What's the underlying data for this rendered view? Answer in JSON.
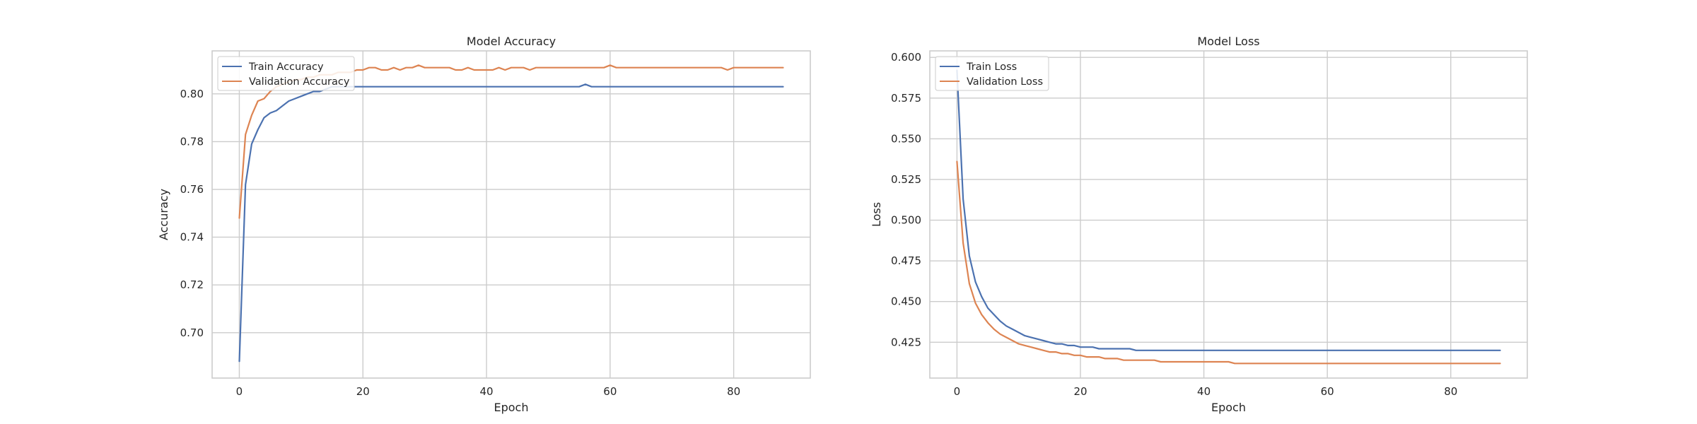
{
  "chart_data": [
    {
      "type": "line",
      "title": "Model Accuracy",
      "xlabel": "Epoch",
      "ylabel": "Accuracy",
      "xlim": [
        -4.4,
        92.4
      ],
      "ylim": [
        0.681,
        0.818
      ],
      "xticks": [
        "0",
        "20",
        "40",
        "60",
        "80"
      ],
      "yticks": [
        "0.70",
        "0.72",
        "0.74",
        "0.76",
        "0.78",
        "0.80"
      ],
      "grid": true,
      "legend_position": "top-left",
      "x": [
        0,
        1,
        2,
        3,
        4,
        5,
        6,
        7,
        8,
        9,
        10,
        11,
        12,
        13,
        14,
        15,
        16,
        17,
        18,
        19,
        20,
        21,
        22,
        23,
        24,
        25,
        26,
        27,
        28,
        29,
        30,
        31,
        32,
        33,
        34,
        35,
        36,
        37,
        38,
        39,
        40,
        41,
        42,
        43,
        44,
        45,
        46,
        47,
        48,
        49,
        50,
        51,
        52,
        53,
        54,
        55,
        56,
        57,
        58,
        59,
        60,
        61,
        62,
        63,
        64,
        65,
        66,
        67,
        68,
        69,
        70,
        71,
        72,
        73,
        74,
        75,
        76,
        77,
        78,
        79,
        80,
        81,
        82,
        83,
        84,
        85,
        86,
        87,
        88
      ],
      "series": [
        {
          "name": "Train Accuracy",
          "color": "#4c72b0",
          "values": [
            0.688,
            0.762,
            0.779,
            0.785,
            0.79,
            0.792,
            0.793,
            0.795,
            0.797,
            0.798,
            0.799,
            0.8,
            0.801,
            0.801,
            0.802,
            0.803,
            0.803,
            0.803,
            0.803,
            0.803,
            0.803,
            0.803,
            0.803,
            0.803,
            0.803,
            0.803,
            0.803,
            0.803,
            0.803,
            0.803,
            0.803,
            0.803,
            0.803,
            0.803,
            0.803,
            0.803,
            0.803,
            0.803,
            0.803,
            0.803,
            0.803,
            0.803,
            0.803,
            0.803,
            0.803,
            0.803,
            0.803,
            0.803,
            0.803,
            0.803,
            0.803,
            0.803,
            0.803,
            0.803,
            0.803,
            0.803,
            0.804,
            0.803,
            0.803,
            0.803,
            0.803,
            0.803,
            0.803,
            0.803,
            0.803,
            0.803,
            0.803,
            0.803,
            0.803,
            0.803,
            0.803,
            0.803,
            0.803,
            0.803,
            0.803,
            0.803,
            0.803,
            0.803,
            0.803,
            0.803,
            0.803,
            0.803,
            0.803,
            0.803,
            0.803,
            0.803,
            0.803,
            0.803,
            0.803
          ]
        },
        {
          "name": "Validation Accuracy",
          "color": "#dd8452",
          "values": [
            0.748,
            0.783,
            0.791,
            0.797,
            0.798,
            0.801,
            0.803,
            0.804,
            0.805,
            0.806,
            0.806,
            0.807,
            0.807,
            0.808,
            0.808,
            0.808,
            0.809,
            0.809,
            0.809,
            0.81,
            0.81,
            0.811,
            0.811,
            0.81,
            0.81,
            0.811,
            0.81,
            0.811,
            0.811,
            0.812,
            0.811,
            0.811,
            0.811,
            0.811,
            0.811,
            0.81,
            0.81,
            0.811,
            0.81,
            0.81,
            0.81,
            0.81,
            0.811,
            0.81,
            0.811,
            0.811,
            0.811,
            0.81,
            0.811,
            0.811,
            0.811,
            0.811,
            0.811,
            0.811,
            0.811,
            0.811,
            0.811,
            0.811,
            0.811,
            0.811,
            0.812,
            0.811,
            0.811,
            0.811,
            0.811,
            0.811,
            0.811,
            0.811,
            0.811,
            0.811,
            0.811,
            0.811,
            0.811,
            0.811,
            0.811,
            0.811,
            0.811,
            0.811,
            0.811,
            0.81,
            0.811,
            0.811,
            0.811,
            0.811,
            0.811,
            0.811,
            0.811,
            0.811,
            0.811
          ]
        }
      ]
    },
    {
      "type": "line",
      "title": "Model Loss",
      "xlabel": "Epoch",
      "ylabel": "Loss",
      "xlim": [
        -4.4,
        92.4
      ],
      "ylim": [
        0.403,
        0.604
      ],
      "xticks": [
        "0",
        "20",
        "40",
        "60",
        "80"
      ],
      "yticks": [
        "0.425",
        "0.450",
        "0.475",
        "0.500",
        "0.525",
        "0.550",
        "0.575",
        "0.600"
      ],
      "grid": true,
      "legend_position": "top-left",
      "x": [
        0,
        1,
        2,
        3,
        4,
        5,
        6,
        7,
        8,
        9,
        10,
        11,
        12,
        13,
        14,
        15,
        16,
        17,
        18,
        19,
        20,
        21,
        22,
        23,
        24,
        25,
        26,
        27,
        28,
        29,
        30,
        31,
        32,
        33,
        34,
        35,
        36,
        37,
        38,
        39,
        40,
        41,
        42,
        43,
        44,
        45,
        46,
        47,
        48,
        49,
        50,
        51,
        52,
        53,
        54,
        55,
        56,
        57,
        58,
        59,
        60,
        61,
        62,
        63,
        64,
        65,
        66,
        67,
        68,
        69,
        70,
        71,
        72,
        73,
        74,
        75,
        76,
        77,
        78,
        79,
        80,
        81,
        82,
        83,
        84,
        85,
        86,
        87,
        88
      ],
      "series": [
        {
          "name": "Train Loss",
          "color": "#4c72b0",
          "values": [
            0.592,
            0.513,
            0.478,
            0.462,
            0.453,
            0.446,
            0.442,
            0.438,
            0.435,
            0.433,
            0.431,
            0.429,
            0.428,
            0.427,
            0.426,
            0.425,
            0.424,
            0.424,
            0.423,
            0.423,
            0.422,
            0.422,
            0.422,
            0.421,
            0.421,
            0.421,
            0.421,
            0.421,
            0.421,
            0.42,
            0.42,
            0.42,
            0.42,
            0.42,
            0.42,
            0.42,
            0.42,
            0.42,
            0.42,
            0.42,
            0.42,
            0.42,
            0.42,
            0.42,
            0.42,
            0.42,
            0.42,
            0.42,
            0.42,
            0.42,
            0.42,
            0.42,
            0.42,
            0.42,
            0.42,
            0.42,
            0.42,
            0.42,
            0.42,
            0.42,
            0.42,
            0.42,
            0.42,
            0.42,
            0.42,
            0.42,
            0.42,
            0.42,
            0.42,
            0.42,
            0.42,
            0.42,
            0.42,
            0.42,
            0.42,
            0.42,
            0.42,
            0.42,
            0.42,
            0.42,
            0.42,
            0.42,
            0.42,
            0.42,
            0.42,
            0.42,
            0.42,
            0.42,
            0.42
          ]
        },
        {
          "name": "Validation Loss",
          "color": "#dd8452",
          "values": [
            0.536,
            0.486,
            0.461,
            0.449,
            0.442,
            0.437,
            0.433,
            0.43,
            0.428,
            0.426,
            0.424,
            0.423,
            0.422,
            0.421,
            0.42,
            0.419,
            0.419,
            0.418,
            0.418,
            0.417,
            0.417,
            0.416,
            0.416,
            0.416,
            0.415,
            0.415,
            0.415,
            0.414,
            0.414,
            0.414,
            0.414,
            0.414,
            0.414,
            0.413,
            0.413,
            0.413,
            0.413,
            0.413,
            0.413,
            0.413,
            0.413,
            0.413,
            0.413,
            0.413,
            0.413,
            0.412,
            0.412,
            0.412,
            0.412,
            0.412,
            0.412,
            0.412,
            0.412,
            0.412,
            0.412,
            0.412,
            0.412,
            0.412,
            0.412,
            0.412,
            0.412,
            0.412,
            0.412,
            0.412,
            0.412,
            0.412,
            0.412,
            0.412,
            0.412,
            0.412,
            0.412,
            0.412,
            0.412,
            0.412,
            0.412,
            0.412,
            0.412,
            0.412,
            0.412,
            0.412,
            0.412,
            0.412,
            0.412,
            0.412,
            0.412,
            0.412,
            0.412,
            0.412,
            0.412
          ]
        }
      ]
    }
  ]
}
